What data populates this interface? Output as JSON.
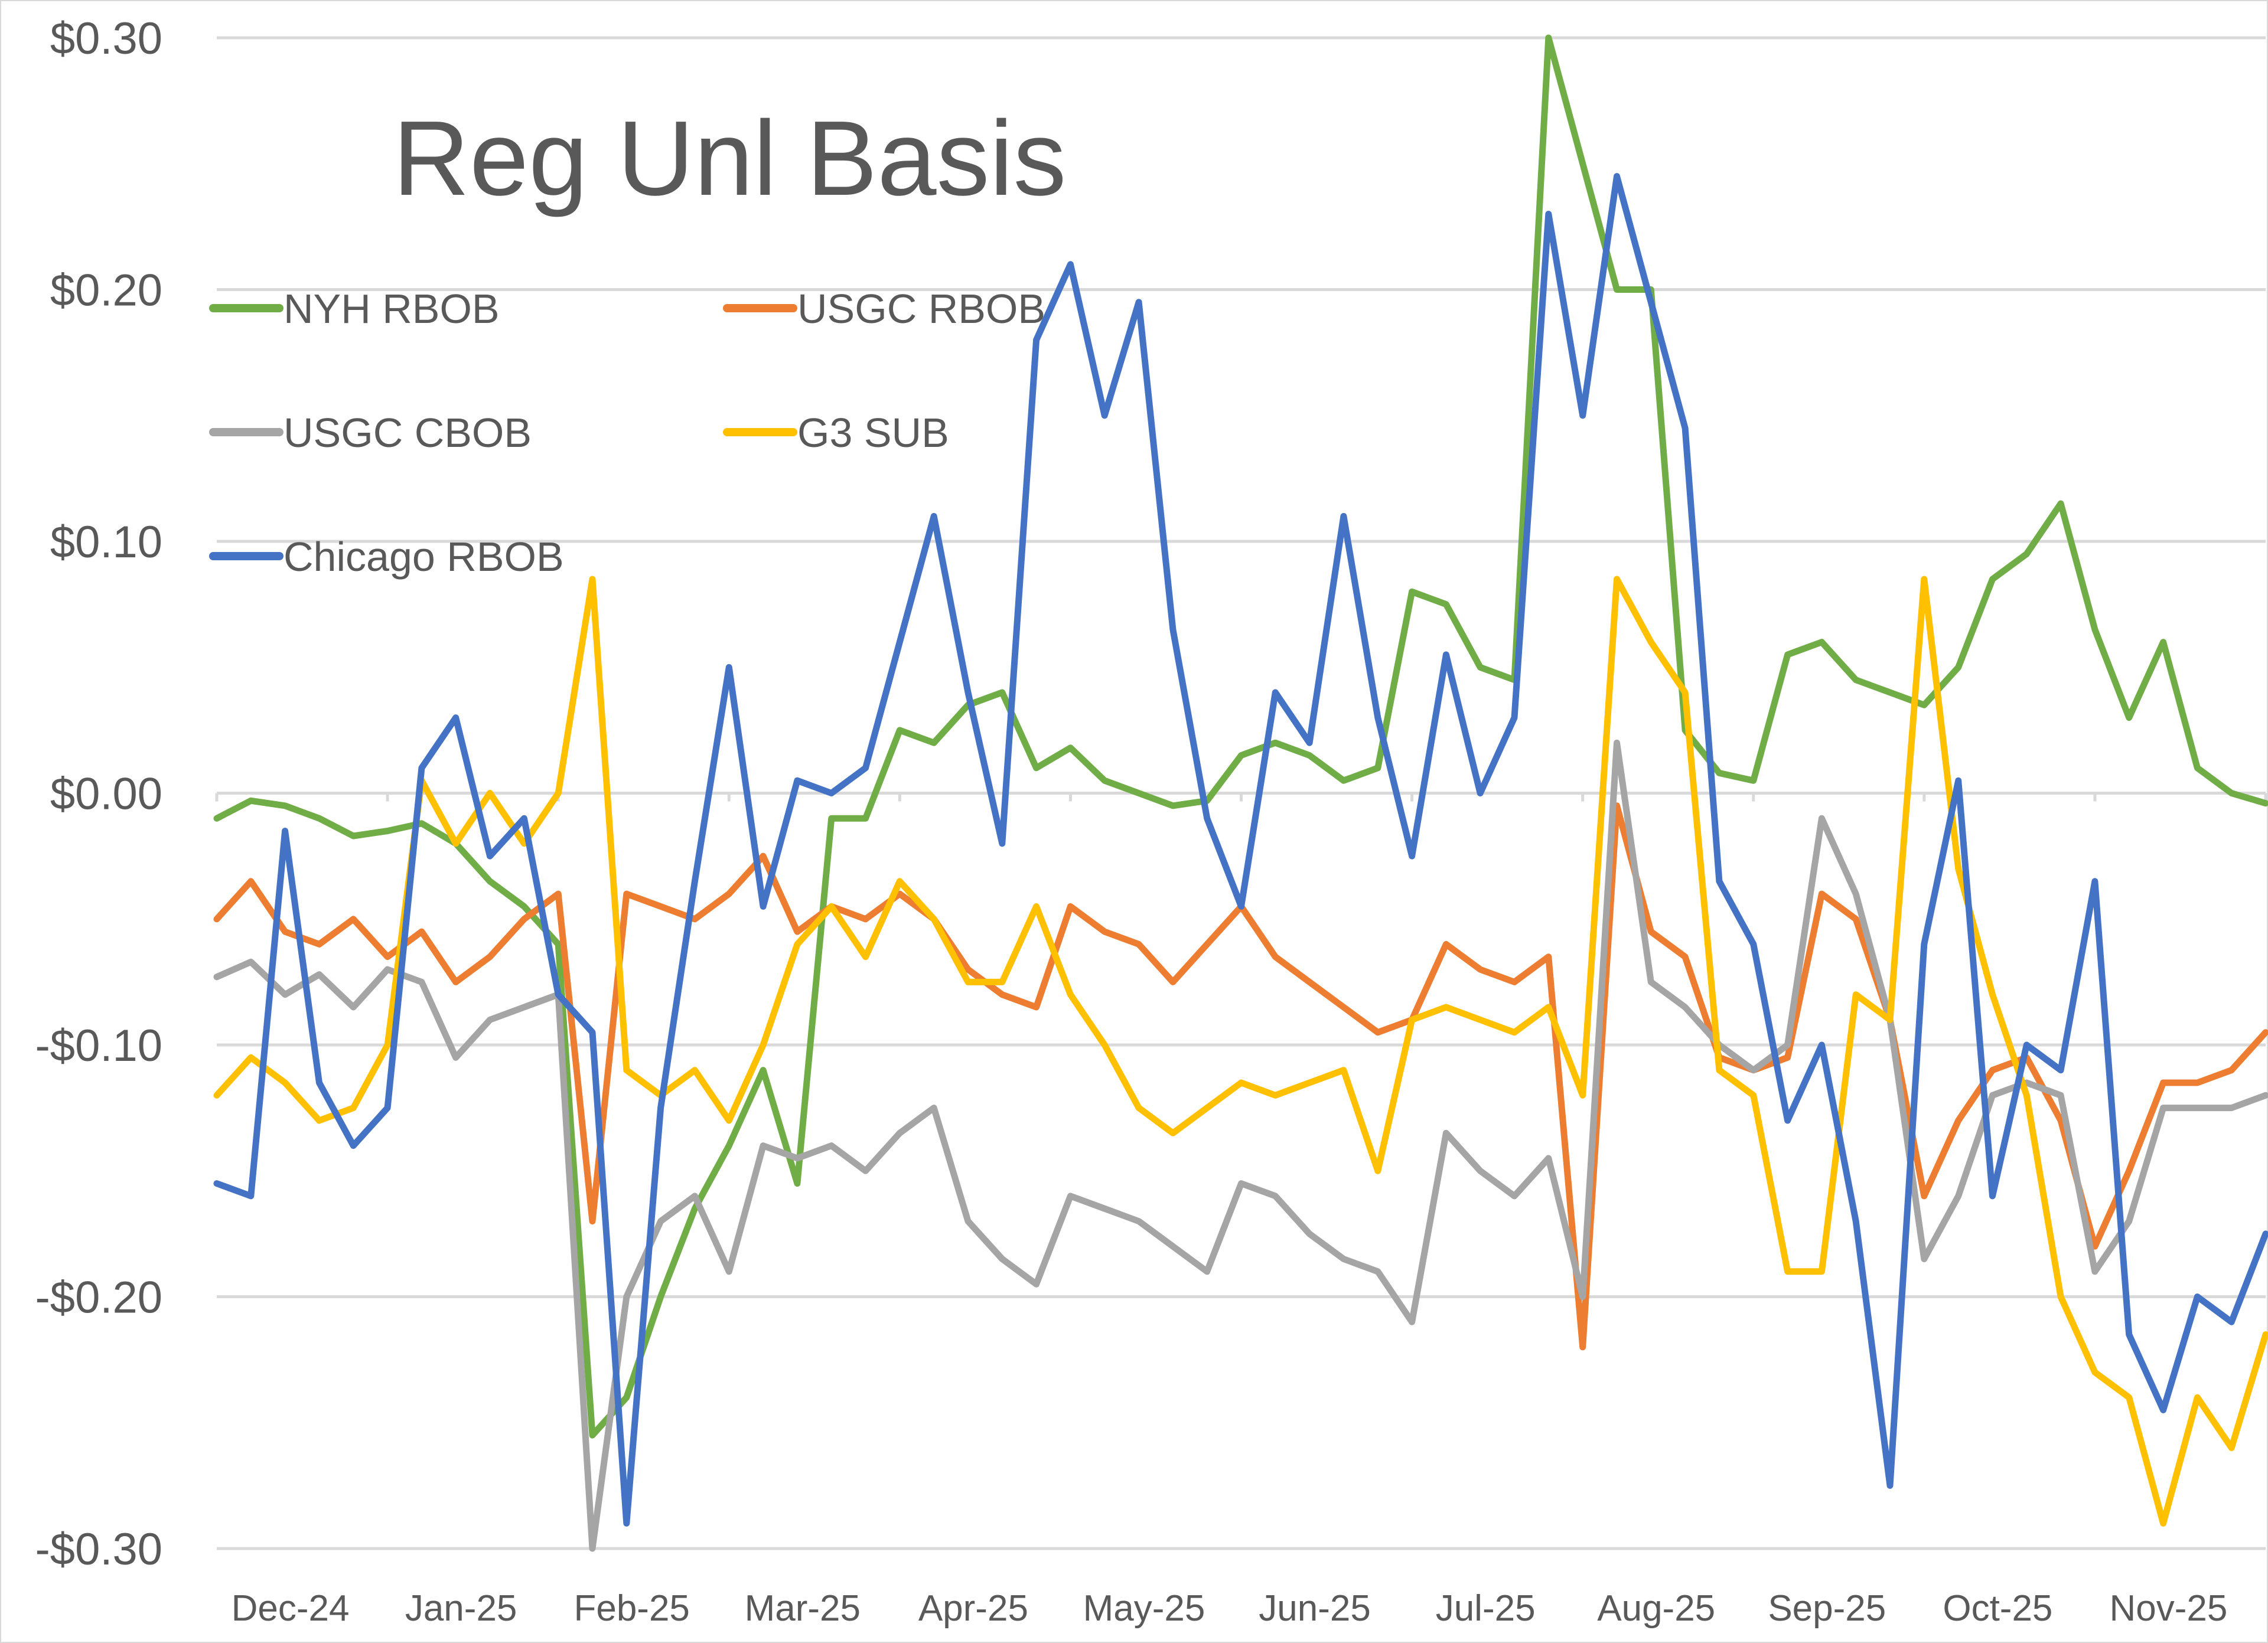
{
  "chart_data": {
    "type": "line",
    "title": "Reg Unl Basis",
    "xlabel": "",
    "ylabel": "",
    "ylim": [
      -0.3,
      0.3
    ],
    "yticks": [
      "$0.30",
      "$0.20",
      "$0.10",
      "$0.00",
      "-$0.10",
      "-$0.20",
      "-$0.30"
    ],
    "ytick_values": [
      0.3,
      0.2,
      0.1,
      0.0,
      -0.1,
      -0.2,
      -0.3
    ],
    "categories": [
      "Dec-24",
      "Jan-25",
      "Feb-25",
      "Mar-25",
      "Apr-25",
      "May-25",
      "Jun-25",
      "Jul-25",
      "Aug-25",
      "Sep-25",
      "Oct-25",
      "Nov-25"
    ],
    "grid": true,
    "legend_position": "upper-left inside",
    "x_points_per_month": 4,
    "series": [
      {
        "name": "NYH RBOB",
        "color": "#70AD47",
        "values": [
          -0.01,
          -0.003,
          -0.005,
          -0.01,
          -0.017,
          -0.015,
          -0.012,
          -0.02,
          -0.035,
          -0.045,
          -0.06,
          -0.255,
          -0.24,
          -0.2,
          -0.165,
          -0.14,
          -0.11,
          -0.155,
          -0.01,
          -0.01,
          0.025,
          0.02,
          0.035,
          0.04,
          0.01,
          0.018,
          0.005,
          0.0,
          -0.005,
          -0.003,
          0.015,
          0.02,
          0.015,
          0.005,
          0.01,
          0.08,
          0.075,
          0.05,
          0.045,
          0.3,
          0.25,
          0.2,
          0.2,
          0.025,
          0.008,
          0.005,
          0.055,
          0.06,
          0.045,
          0.04,
          0.035,
          0.05,
          0.085,
          0.095,
          0.115,
          0.065,
          0.03,
          0.06,
          0.01,
          0.0,
          -0.004
        ]
      },
      {
        "name": "USGC RBOB",
        "color": "#ED7D31",
        "values": [
          -0.05,
          -0.035,
          -0.055,
          -0.06,
          -0.05,
          -0.065,
          -0.055,
          -0.075,
          -0.065,
          -0.05,
          -0.04,
          -0.17,
          -0.04,
          -0.045,
          -0.05,
          -0.04,
          -0.025,
          -0.055,
          -0.045,
          -0.05,
          -0.04,
          -0.05,
          -0.07,
          -0.08,
          -0.085,
          -0.045,
          -0.055,
          -0.06,
          -0.075,
          -0.06,
          -0.045,
          -0.065,
          -0.075,
          -0.085,
          -0.095,
          -0.09,
          -0.06,
          -0.07,
          -0.075,
          -0.065,
          -0.22,
          -0.005,
          -0.055,
          -0.065,
          -0.105,
          -0.11,
          -0.105,
          -0.04,
          -0.05,
          -0.09,
          -0.16,
          -0.13,
          -0.11,
          -0.105,
          -0.13,
          -0.18,
          -0.15,
          -0.115,
          -0.115,
          -0.11,
          -0.095
        ]
      },
      {
        "name": "USGC CBOB",
        "color": "#A5A5A5",
        "values": [
          -0.073,
          -0.067,
          -0.08,
          -0.072,
          -0.085,
          -0.07,
          -0.075,
          -0.105,
          -0.09,
          -0.085,
          -0.08,
          -0.3,
          -0.2,
          -0.17,
          -0.16,
          -0.19,
          -0.14,
          -0.145,
          -0.14,
          -0.15,
          -0.135,
          -0.125,
          -0.17,
          -0.185,
          -0.195,
          -0.16,
          -0.165,
          -0.17,
          -0.18,
          -0.19,
          -0.155,
          -0.16,
          -0.175,
          -0.185,
          -0.19,
          -0.21,
          -0.135,
          -0.15,
          -0.16,
          -0.145,
          -0.2,
          0.02,
          -0.075,
          -0.085,
          -0.1,
          -0.11,
          -0.1,
          -0.01,
          -0.04,
          -0.09,
          -0.185,
          -0.16,
          -0.12,
          -0.115,
          -0.12,
          -0.19,
          -0.17,
          -0.125,
          -0.125,
          -0.125,
          -0.12
        ]
      },
      {
        "name": "G3 SUB",
        "color": "#FFC000",
        "values": [
          -0.12,
          -0.105,
          -0.115,
          -0.13,
          -0.125,
          -0.1,
          0.005,
          -0.02,
          0.0,
          -0.02,
          0.0,
          0.085,
          -0.11,
          -0.12,
          -0.11,
          -0.13,
          -0.1,
          -0.06,
          -0.045,
          -0.065,
          -0.035,
          -0.05,
          -0.075,
          -0.075,
          -0.045,
          -0.08,
          -0.1,
          -0.125,
          -0.135,
          -0.125,
          -0.115,
          -0.12,
          -0.115,
          -0.11,
          -0.15,
          -0.09,
          -0.085,
          -0.09,
          -0.095,
          -0.085,
          -0.12,
          0.085,
          0.06,
          0.04,
          -0.11,
          -0.12,
          -0.19,
          -0.19,
          -0.08,
          -0.09,
          0.085,
          -0.03,
          -0.08,
          -0.12,
          -0.2,
          -0.23,
          -0.24,
          -0.29,
          -0.24,
          -0.26,
          -0.215
        ]
      },
      {
        "name": "Chicago RBOB",
        "color": "#4472C4",
        "values": [
          -0.155,
          -0.16,
          -0.015,
          -0.115,
          -0.14,
          -0.125,
          0.01,
          0.03,
          -0.025,
          -0.01,
          -0.08,
          -0.095,
          -0.29,
          -0.125,
          -0.035,
          0.05,
          -0.045,
          0.005,
          0.0,
          0.01,
          0.06,
          0.11,
          0.04,
          -0.02,
          0.18,
          0.21,
          0.15,
          0.195,
          0.065,
          -0.01,
          -0.045,
          0.04,
          0.02,
          0.11,
          0.03,
          -0.025,
          0.055,
          0.0,
          0.03,
          0.23,
          0.15,
          0.245,
          0.195,
          0.145,
          -0.035,
          -0.06,
          -0.13,
          -0.1,
          -0.17,
          -0.275,
          -0.06,
          0.005,
          -0.16,
          -0.1,
          -0.11,
          -0.035,
          -0.215,
          -0.245,
          -0.2,
          -0.21,
          -0.175
        ]
      }
    ]
  },
  "legend": {
    "items": [
      {
        "label": "NYH RBOB",
        "color": "#70AD47"
      },
      {
        "label": "USGC RBOB",
        "color": "#ED7D31"
      },
      {
        "label": "USGC CBOB",
        "color": "#A5A5A5"
      },
      {
        "label": "G3 SUB",
        "color": "#FFC000"
      },
      {
        "label": "Chicago RBOB",
        "color": "#4472C4"
      }
    ]
  },
  "style": {
    "text_color": "#595959",
    "grid_color": "#D9D9D9",
    "background": "#FFFFFF"
  }
}
